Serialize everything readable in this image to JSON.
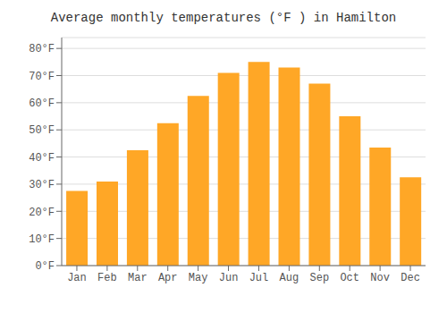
{
  "chart_data": {
    "type": "bar",
    "title": "Average monthly temperatures (°F ) in Hamilton",
    "categories": [
      "Jan",
      "Feb",
      "Mar",
      "Apr",
      "May",
      "Jun",
      "Jul",
      "Aug",
      "Sep",
      "Oct",
      "Nov",
      "Dec"
    ],
    "values": [
      27.5,
      31.0,
      42.5,
      52.5,
      62.5,
      71.0,
      75.0,
      73.0,
      67.0,
      55.0,
      43.5,
      32.5
    ],
    "color": "#FFA726",
    "ylim": [
      0,
      84
    ],
    "yticks": [
      {
        "value": 0,
        "label": "0°F"
      },
      {
        "value": 10,
        "label": "10°F"
      },
      {
        "value": 20,
        "label": "20°F"
      },
      {
        "value": 30,
        "label": "30°F"
      },
      {
        "value": 40,
        "label": "40°F"
      },
      {
        "value": 50,
        "label": "50°F"
      },
      {
        "value": 60,
        "label": "60°F"
      },
      {
        "value": 70,
        "label": "70°F"
      },
      {
        "value": 80,
        "label": "80°F"
      }
    ],
    "grid": true
  }
}
